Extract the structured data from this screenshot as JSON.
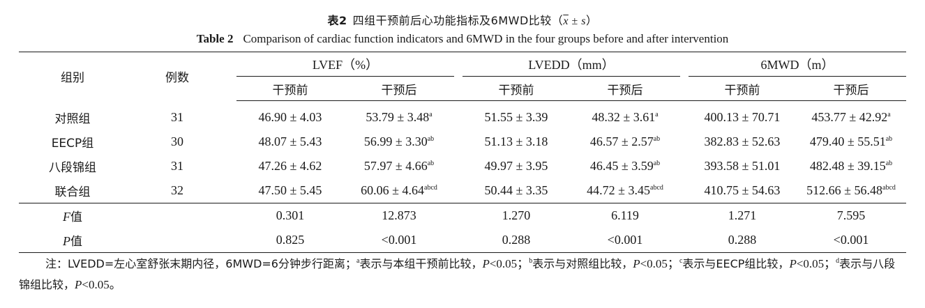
{
  "title": {
    "cn_label": "表2",
    "cn_text": "四组干预前后心功能指标及6MWD比较（",
    "cn_mean": "x",
    "cn_pm": " ± ",
    "cn_sd": "s",
    "cn_close": "）",
    "en_label": "Table 2",
    "en_text": "Comparison of cardiac function indicators and 6MWD in the four groups before and after intervention"
  },
  "header": {
    "group": "组别",
    "cases": "例数",
    "lvef": "LVEF（%）",
    "lvedd": "LVEDD（mm）",
    "mwd": "6MWD（m）",
    "before": "干预前",
    "after": "干预后"
  },
  "rows": [
    {
      "group": "对照组",
      "n": "31",
      "lvef_b": "46.90 ± 4.03",
      "lvef_a": "53.79 ± 3.48",
      "lvef_a_sup": "a",
      "lvedd_b": "51.55 ± 3.39",
      "lvedd_a": "48.32 ± 3.61",
      "lvedd_a_sup": "a",
      "mwd_b": "400.13 ± 70.71",
      "mwd_a": "453.77 ± 42.92",
      "mwd_a_sup": "a"
    },
    {
      "group": "EECP组",
      "n": "30",
      "lvef_b": "48.07 ± 5.43",
      "lvef_a": "56.99 ± 3.30",
      "lvef_a_sup": "ab",
      "lvedd_b": "51.13 ± 3.18",
      "lvedd_a": "46.57 ± 2.57",
      "lvedd_a_sup": "ab",
      "mwd_b": "382.83 ± 52.63",
      "mwd_a": "479.40 ± 55.51",
      "mwd_a_sup": "ab"
    },
    {
      "group": "八段锦组",
      "n": "31",
      "lvef_b": "47.26 ± 4.62",
      "lvef_a": "57.97 ± 4.66",
      "lvef_a_sup": "ab",
      "lvedd_b": "49.97 ± 3.95",
      "lvedd_a": "46.45 ± 3.59",
      "lvedd_a_sup": "ab",
      "mwd_b": "393.58 ± 51.01",
      "mwd_a": "482.48 ± 39.15",
      "mwd_a_sup": "ab"
    },
    {
      "group": "联合组",
      "n": "32",
      "lvef_b": "47.50 ± 5.45",
      "lvef_a": "60.06 ± 4.64",
      "lvef_a_sup": "abcd",
      "lvedd_b": "50.44 ± 3.35",
      "lvedd_a": "44.72 ± 3.45",
      "lvedd_a_sup": "abcd",
      "mwd_b": "410.75 ± 54.63",
      "mwd_a": "512.66 ± 56.48",
      "mwd_a_sup": "abcd"
    }
  ],
  "stats": [
    {
      "label_it": "F",
      "label_cn": "值",
      "v": [
        "0.301",
        "12.873",
        "1.270",
        "6.119",
        "1.271",
        "7.595"
      ]
    },
    {
      "label_it": "P",
      "label_cn": "值",
      "v": [
        "0.825",
        "<0.001",
        "0.288",
        "<0.001",
        "0.288",
        "<0.001"
      ]
    }
  ],
  "note": {
    "prefix": "注：LVEDD=左心室舒张末期内径，6MWD=6分钟步行距离；",
    "a_sup": "a",
    "a_text": "表示与本组干预前比较，",
    "p": "P",
    "lt": "<0.05；",
    "b_sup": "b",
    "b_text": "表示与对照组比较，",
    "c_sup": "c",
    "c_text": "表示与EECP组比较，",
    "d_sup": "d",
    "d_text": "表示与八段锦组比较，",
    "end": "<0.05。"
  }
}
